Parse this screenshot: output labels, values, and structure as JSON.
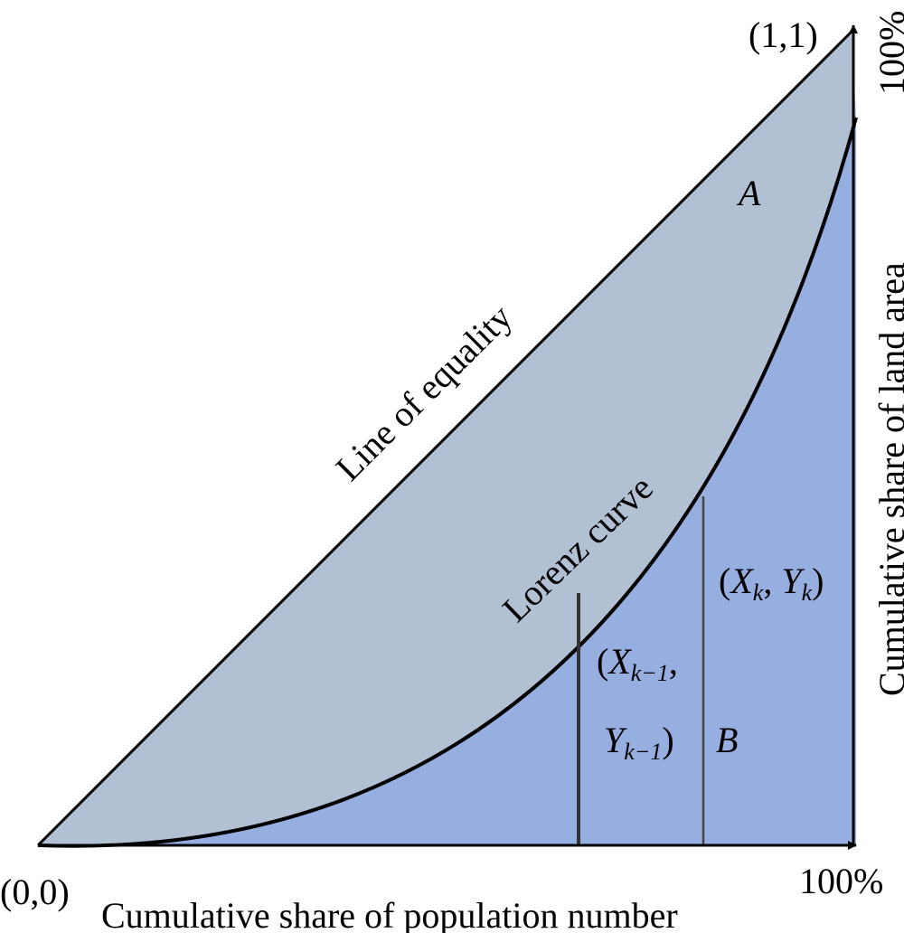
{
  "origin_label": "(0,0)",
  "end_label": "(1,1)",
  "x_max_label": "100%",
  "y_max_label": "100%",
  "x_axis_title": "Cumulative share of population number",
  "y_axis_title": "Cumulative share of land area",
  "equality_line_label": "Line of equality",
  "lorenz_curve_label": "Lorenz curve",
  "area_a_label": "A",
  "area_b_label": "B",
  "point_k": {
    "open": "(",
    "x": "X",
    "x_sub": "k",
    "sep": ", ",
    "y": "Y",
    "y_sub": "k",
    "close": ")"
  },
  "point_k_minus_1": {
    "open": "(",
    "x": "X",
    "x_sub": "k−1",
    "comma": ",",
    "y": "Y",
    "y_sub": "k−1",
    "close": ")"
  },
  "colors": {
    "area_a": "#b2c0d4",
    "area_b": "#97aee0",
    "lines": "#000000"
  }
}
